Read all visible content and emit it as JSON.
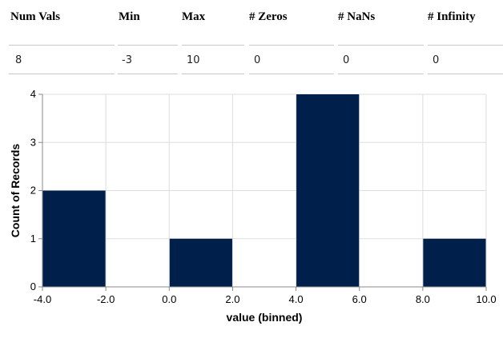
{
  "stats": {
    "headers": [
      "Num Vals",
      "Min",
      "Max",
      "# Zeros",
      "# NaNs",
      "# Infinity"
    ],
    "values": [
      "8",
      "-3",
      "10",
      "0",
      "0",
      "0"
    ]
  },
  "colors": {
    "bar": "#001f4a",
    "grid": "#dddddd",
    "axis": "#888888"
  },
  "chart_data": {
    "type": "bar",
    "xlabel": "value (binned)",
    "ylabel": "Count of Records",
    "bins": [
      {
        "start": -4,
        "end": -2,
        "count": 2
      },
      {
        "start": 0,
        "end": 2,
        "count": 1
      },
      {
        "start": 4,
        "end": 6,
        "count": 4
      },
      {
        "start": 8,
        "end": 10,
        "count": 1
      }
    ],
    "xlim": [
      -4,
      10
    ],
    "ylim": [
      0,
      4
    ],
    "x_ticks": [
      "-4.0",
      "-2.0",
      "0.0",
      "2.0",
      "4.0",
      "6.0",
      "8.0",
      "10.0"
    ],
    "y_ticks": [
      "0",
      "1",
      "2",
      "3",
      "4"
    ],
    "grid": true
  }
}
